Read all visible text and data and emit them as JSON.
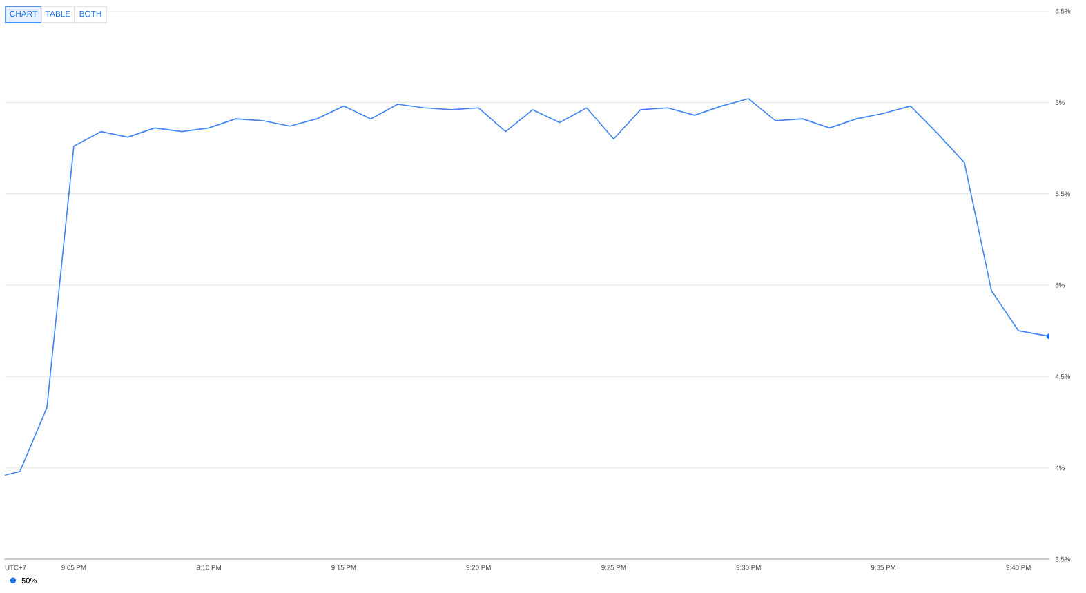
{
  "chart_data": {
    "type": "line",
    "x": [
      21.0407,
      21.05,
      21.0667,
      21.0833,
      21.1,
      21.1167,
      21.1333,
      21.15,
      21.1667,
      21.1833,
      21.2,
      21.2167,
      21.2333,
      21.25,
      21.2667,
      21.2833,
      21.3,
      21.3167,
      21.3333,
      21.35,
      21.3667,
      21.3833,
      21.4,
      21.4167,
      21.4333,
      21.45,
      21.4667,
      21.4833,
      21.5,
      21.5167,
      21.5333,
      21.55,
      21.5667,
      21.5833,
      21.6,
      21.6167,
      21.6333,
      21.65,
      21.6667,
      21.6858
    ],
    "series": [
      {
        "name": "50%",
        "color": "#4285f4",
        "values": [
          3.96,
          3.98,
          4.33,
          5.76,
          5.84,
          5.81,
          5.86,
          5.84,
          5.86,
          5.91,
          5.9,
          5.87,
          5.91,
          5.98,
          5.91,
          5.99,
          5.97,
          5.96,
          5.97,
          5.84,
          5.96,
          5.89,
          5.97,
          5.8,
          5.96,
          5.97,
          5.93,
          5.98,
          6.02,
          5.9,
          5.91,
          5.86,
          5.91,
          5.94,
          5.98,
          5.83,
          5.67,
          4.97,
          4.75,
          4.72
        ]
      }
    ],
    "xlim": [
      21.0407,
      21.6858
    ],
    "xticks": [
      {
        "value": 21.0833,
        "label": "9:05 PM"
      },
      {
        "value": 21.1667,
        "label": "9:10 PM"
      },
      {
        "value": 21.25,
        "label": "9:15 PM"
      },
      {
        "value": 21.3333,
        "label": "9:20 PM"
      },
      {
        "value": 21.4167,
        "label": "9:25 PM"
      },
      {
        "value": 21.5,
        "label": "9:30 PM"
      },
      {
        "value": 21.5833,
        "label": "9:35 PM"
      },
      {
        "value": 21.6667,
        "label": "9:40 PM"
      }
    ],
    "ylim": [
      3.5,
      6.5
    ],
    "yticks": [
      {
        "value": 3.5,
        "label": "3.5%"
      },
      {
        "value": 4,
        "label": "4%"
      },
      {
        "value": 4.5,
        "label": "4.5%"
      },
      {
        "value": 5,
        "label": "5%"
      },
      {
        "value": 5.5,
        "label": "5.5%"
      },
      {
        "value": 6,
        "label": "6%"
      },
      {
        "value": 6.5,
        "label": "6.5%"
      }
    ],
    "grid": "y",
    "legend": "bottom left",
    "annotations": [
      "UTC+7",
      "CHART",
      "TABLE",
      "BOTH"
    ]
  }
}
